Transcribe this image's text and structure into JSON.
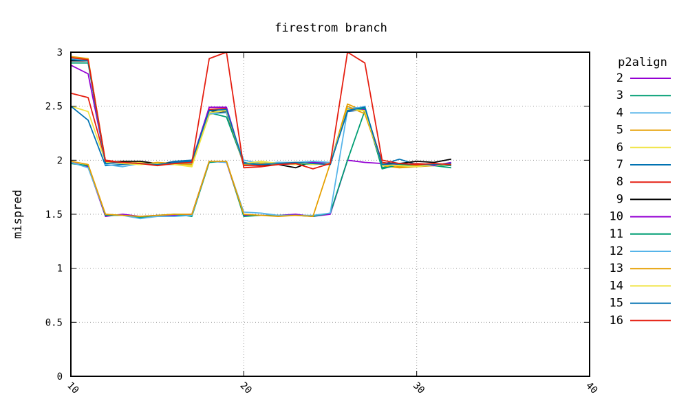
{
  "chart_data": {
    "type": "line",
    "title": "firestrom branch",
    "xlabel": "",
    "ylabel": "mispred",
    "xlim": [
      10,
      40
    ],
    "ylim": [
      0,
      3
    ],
    "xticks": [
      "10",
      "20",
      "30",
      "40"
    ],
    "yticks": [
      "0",
      "0.5",
      "1",
      "1.5",
      "2",
      "2.5",
      "3"
    ],
    "grid": true,
    "legend_title": "p2align",
    "legend_position": "right",
    "x": [
      10,
      11,
      12,
      13,
      14,
      15,
      16,
      17,
      18,
      19,
      20,
      21,
      22,
      23,
      24,
      25,
      26,
      27,
      28,
      29,
      30,
      31,
      32
    ],
    "series": [
      {
        "name": "2",
        "color": "#9400d3",
        "values": [
          1.98,
          1.94,
          1.48,
          1.5,
          1.48,
          1.49,
          1.49,
          1.5,
          1.99,
          1.98,
          1.49,
          1.49,
          1.49,
          1.5,
          1.48,
          1.5,
          2.0,
          1.98,
          1.97,
          1.97,
          1.96,
          1.96,
          1.96
        ]
      },
      {
        "name": "3",
        "color": "#009e73",
        "values": [
          1.97,
          1.95,
          1.49,
          1.49,
          1.47,
          1.49,
          1.5,
          1.48,
          1.98,
          1.99,
          1.48,
          1.49,
          1.49,
          1.49,
          1.48,
          1.51,
          2.0,
          2.46,
          1.93,
          1.96,
          1.95,
          1.95,
          1.93
        ]
      },
      {
        "name": "4",
        "color": "#56b4e9",
        "values": [
          1.98,
          1.93,
          1.5,
          1.49,
          1.46,
          1.48,
          1.48,
          1.49,
          1.99,
          1.98,
          1.52,
          1.51,
          1.49,
          1.49,
          1.49,
          1.51,
          2.46,
          2.5,
          1.95,
          1.96,
          1.94,
          1.96,
          1.95
        ]
      },
      {
        "name": "5",
        "color": "#e69f00",
        "values": [
          1.99,
          1.96,
          1.5,
          1.49,
          1.48,
          1.49,
          1.5,
          1.5,
          1.99,
          1.99,
          1.5,
          1.49,
          1.48,
          1.49,
          1.48,
          1.97,
          2.52,
          2.45,
          1.95,
          1.93,
          1.94,
          1.95,
          1.96
        ]
      },
      {
        "name": "6",
        "color": "#f0e442",
        "values": [
          2.5,
          2.45,
          1.99,
          1.98,
          1.98,
          1.97,
          1.96,
          1.95,
          2.42,
          2.47,
          1.97,
          1.98,
          1.97,
          1.96,
          1.97,
          1.97,
          2.48,
          2.46,
          1.95,
          1.96,
          1.95,
          1.95,
          1.96
        ]
      },
      {
        "name": "7",
        "color": "#0072b2",
        "values": [
          2.5,
          2.37,
          1.95,
          1.96,
          1.97,
          1.96,
          1.99,
          2.0,
          2.44,
          2.45,
          1.98,
          1.96,
          1.97,
          1.98,
          1.98,
          1.97,
          2.45,
          2.47,
          1.96,
          2.01,
          1.96,
          1.96,
          1.95
        ]
      },
      {
        "name": "8",
        "color": "#e51e10",
        "values": [
          2.62,
          2.58,
          2.0,
          1.98,
          1.97,
          1.96,
          1.97,
          1.98,
          2.47,
          2.48,
          1.95,
          1.95,
          1.96,
          1.97,
          1.97,
          1.96,
          2.47,
          2.48,
          1.98,
          1.96,
          1.97,
          1.96,
          1.97
        ]
      },
      {
        "name": "9",
        "color": "#000000",
        "values": [
          2.92,
          2.92,
          1.98,
          1.99,
          1.99,
          1.97,
          1.98,
          1.98,
          2.46,
          2.44,
          1.97,
          1.96,
          1.96,
          1.93,
          1.99,
          1.97,
          2.46,
          2.48,
          1.97,
          1.97,
          1.99,
          1.98,
          2.01
        ]
      },
      {
        "name": "10",
        "color": "#9400d3",
        "values": [
          2.88,
          2.8,
          1.99,
          1.98,
          1.97,
          1.96,
          1.98,
          1.99,
          2.49,
          2.49,
          1.96,
          1.97,
          1.96,
          1.97,
          1.98,
          1.97,
          2.46,
          2.47,
          1.97,
          1.96,
          1.96,
          1.95,
          1.98
        ]
      },
      {
        "name": "11",
        "color": "#009e73",
        "values": [
          2.9,
          2.9,
          1.97,
          1.98,
          1.97,
          1.96,
          1.97,
          1.98,
          2.44,
          2.4,
          1.97,
          1.97,
          1.98,
          1.97,
          1.96,
          1.97,
          2.46,
          2.48,
          1.92,
          1.96,
          1.95,
          1.96,
          1.95
        ]
      },
      {
        "name": "12",
        "color": "#56b4e9",
        "values": [
          2.94,
          2.93,
          1.96,
          1.94,
          1.97,
          1.96,
          1.96,
          1.97,
          2.43,
          2.44,
          2.0,
          1.97,
          1.98,
          1.98,
          1.99,
          1.98,
          2.48,
          2.49,
          1.96,
          1.95,
          1.94,
          1.96,
          1.97
        ]
      },
      {
        "name": "13",
        "color": "#e69f00",
        "values": [
          2.96,
          2.94,
          1.99,
          1.98,
          1.96,
          1.98,
          1.97,
          1.96,
          2.44,
          2.46,
          1.96,
          1.97,
          1.96,
          1.98,
          1.97,
          1.96,
          2.5,
          2.43,
          1.97,
          1.94,
          1.95,
          1.96,
          1.96
        ]
      },
      {
        "name": "14",
        "color": "#f0e442",
        "values": [
          2.95,
          2.93,
          1.98,
          1.97,
          1.96,
          1.97,
          1.96,
          1.94,
          2.44,
          2.46,
          1.97,
          1.99,
          1.97,
          1.98,
          1.96,
          1.97,
          2.47,
          2.46,
          1.96,
          1.95,
          1.94,
          1.96,
          1.96
        ]
      },
      {
        "name": "15",
        "color": "#0072b2",
        "values": [
          2.93,
          2.92,
          1.97,
          1.98,
          1.97,
          1.96,
          1.98,
          1.99,
          2.46,
          2.47,
          1.97,
          1.96,
          1.97,
          1.98,
          1.97,
          1.96,
          2.46,
          2.49,
          1.96,
          1.97,
          1.96,
          1.96,
          1.97
        ]
      },
      {
        "name": "16",
        "color": "#e51e10",
        "values": [
          2.95,
          2.93,
          1.99,
          1.98,
          1.97,
          1.95,
          1.97,
          1.98,
          2.94,
          3.0,
          1.93,
          1.94,
          1.96,
          1.97,
          1.92,
          1.97,
          3.0,
          2.9,
          2.0,
          1.97,
          1.96,
          1.97,
          1.96
        ]
      }
    ]
  }
}
